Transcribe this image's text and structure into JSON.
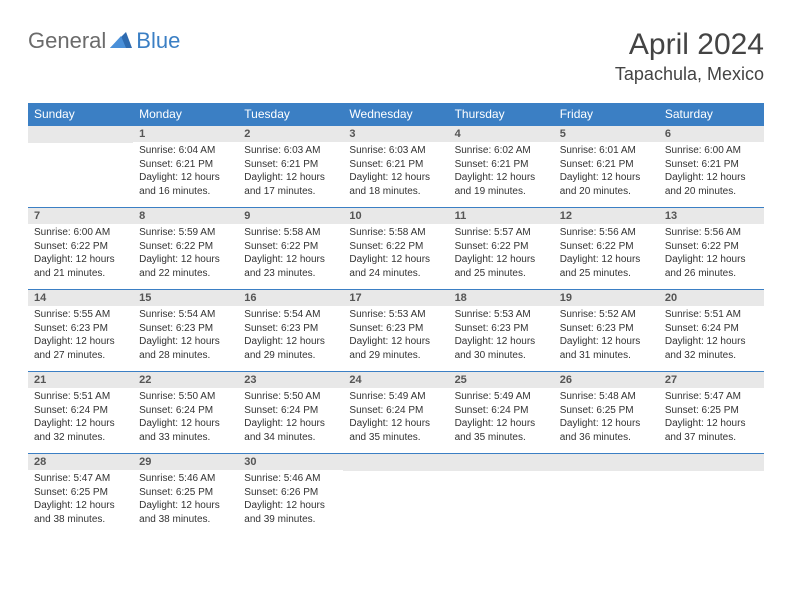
{
  "logo": {
    "text1": "General",
    "text2": "Blue"
  },
  "title": "April 2024",
  "location": "Tapachula, Mexico",
  "header_bg": "#3b7fc4",
  "day_headers": [
    "Sunday",
    "Monday",
    "Tuesday",
    "Wednesday",
    "Thursday",
    "Friday",
    "Saturday"
  ],
  "weeks": [
    [
      null,
      {
        "n": "1",
        "sr": "6:04 AM",
        "ss": "6:21 PM",
        "dl": "12 hours and 16 minutes."
      },
      {
        "n": "2",
        "sr": "6:03 AM",
        "ss": "6:21 PM",
        "dl": "12 hours and 17 minutes."
      },
      {
        "n": "3",
        "sr": "6:03 AM",
        "ss": "6:21 PM",
        "dl": "12 hours and 18 minutes."
      },
      {
        "n": "4",
        "sr": "6:02 AM",
        "ss": "6:21 PM",
        "dl": "12 hours and 19 minutes."
      },
      {
        "n": "5",
        "sr": "6:01 AM",
        "ss": "6:21 PM",
        "dl": "12 hours and 20 minutes."
      },
      {
        "n": "6",
        "sr": "6:00 AM",
        "ss": "6:21 PM",
        "dl": "12 hours and 20 minutes."
      }
    ],
    [
      {
        "n": "7",
        "sr": "6:00 AM",
        "ss": "6:22 PM",
        "dl": "12 hours and 21 minutes."
      },
      {
        "n": "8",
        "sr": "5:59 AM",
        "ss": "6:22 PM",
        "dl": "12 hours and 22 minutes."
      },
      {
        "n": "9",
        "sr": "5:58 AM",
        "ss": "6:22 PM",
        "dl": "12 hours and 23 minutes."
      },
      {
        "n": "10",
        "sr": "5:58 AM",
        "ss": "6:22 PM",
        "dl": "12 hours and 24 minutes."
      },
      {
        "n": "11",
        "sr": "5:57 AM",
        "ss": "6:22 PM",
        "dl": "12 hours and 25 minutes."
      },
      {
        "n": "12",
        "sr": "5:56 AM",
        "ss": "6:22 PM",
        "dl": "12 hours and 25 minutes."
      },
      {
        "n": "13",
        "sr": "5:56 AM",
        "ss": "6:22 PM",
        "dl": "12 hours and 26 minutes."
      }
    ],
    [
      {
        "n": "14",
        "sr": "5:55 AM",
        "ss": "6:23 PM",
        "dl": "12 hours and 27 minutes."
      },
      {
        "n": "15",
        "sr": "5:54 AM",
        "ss": "6:23 PM",
        "dl": "12 hours and 28 minutes."
      },
      {
        "n": "16",
        "sr": "5:54 AM",
        "ss": "6:23 PM",
        "dl": "12 hours and 29 minutes."
      },
      {
        "n": "17",
        "sr": "5:53 AM",
        "ss": "6:23 PM",
        "dl": "12 hours and 29 minutes."
      },
      {
        "n": "18",
        "sr": "5:53 AM",
        "ss": "6:23 PM",
        "dl": "12 hours and 30 minutes."
      },
      {
        "n": "19",
        "sr": "5:52 AM",
        "ss": "6:23 PM",
        "dl": "12 hours and 31 minutes."
      },
      {
        "n": "20",
        "sr": "5:51 AM",
        "ss": "6:24 PM",
        "dl": "12 hours and 32 minutes."
      }
    ],
    [
      {
        "n": "21",
        "sr": "5:51 AM",
        "ss": "6:24 PM",
        "dl": "12 hours and 32 minutes."
      },
      {
        "n": "22",
        "sr": "5:50 AM",
        "ss": "6:24 PM",
        "dl": "12 hours and 33 minutes."
      },
      {
        "n": "23",
        "sr": "5:50 AM",
        "ss": "6:24 PM",
        "dl": "12 hours and 34 minutes."
      },
      {
        "n": "24",
        "sr": "5:49 AM",
        "ss": "6:24 PM",
        "dl": "12 hours and 35 minutes."
      },
      {
        "n": "25",
        "sr": "5:49 AM",
        "ss": "6:24 PM",
        "dl": "12 hours and 35 minutes."
      },
      {
        "n": "26",
        "sr": "5:48 AM",
        "ss": "6:25 PM",
        "dl": "12 hours and 36 minutes."
      },
      {
        "n": "27",
        "sr": "5:47 AM",
        "ss": "6:25 PM",
        "dl": "12 hours and 37 minutes."
      }
    ],
    [
      {
        "n": "28",
        "sr": "5:47 AM",
        "ss": "6:25 PM",
        "dl": "12 hours and 38 minutes."
      },
      {
        "n": "29",
        "sr": "5:46 AM",
        "ss": "6:25 PM",
        "dl": "12 hours and 38 minutes."
      },
      {
        "n": "30",
        "sr": "5:46 AM",
        "ss": "6:26 PM",
        "dl": "12 hours and 39 minutes."
      },
      null,
      null,
      null,
      null
    ]
  ],
  "labels": {
    "sunrise": "Sunrise:",
    "sunset": "Sunset:",
    "daylight": "Daylight:"
  }
}
